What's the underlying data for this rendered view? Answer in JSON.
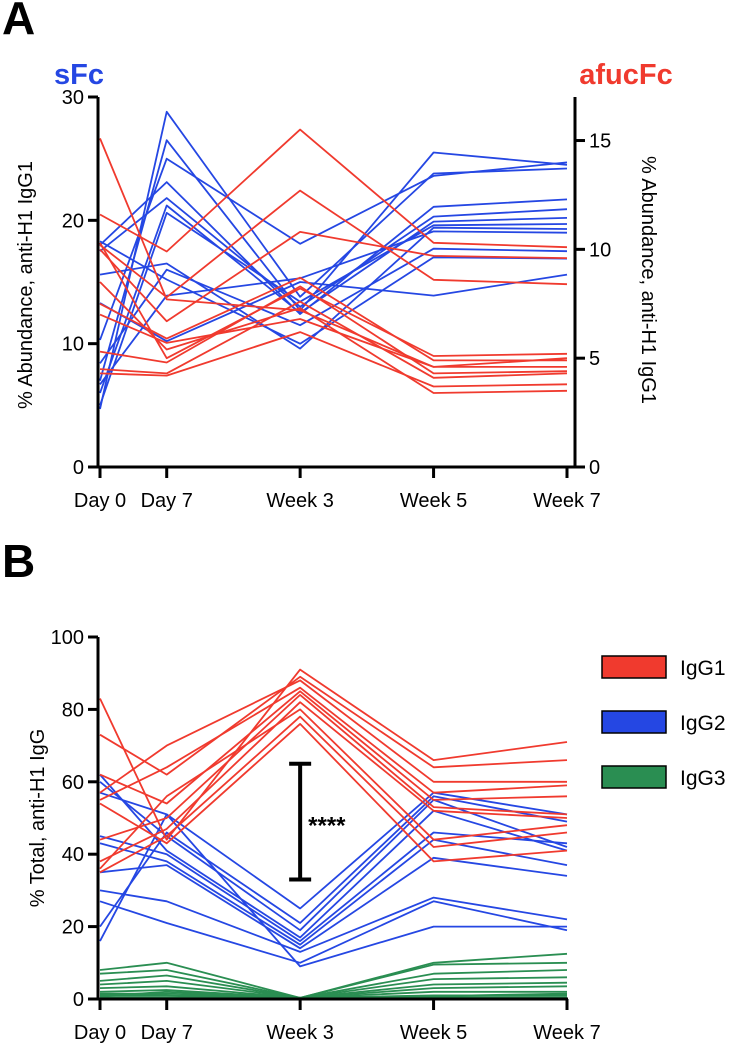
{
  "colors": {
    "sFc": "#2547E3",
    "afucFc": "#F03A2E",
    "IgG1": "#F03A2E",
    "IgG2": "#2547E3",
    "IgG3": "#2A8E52",
    "axis": "#000000"
  },
  "panels": {
    "a": {
      "letter": "A"
    },
    "b": {
      "letter": "B"
    }
  },
  "chart_data": [
    {
      "id": "A",
      "type": "line",
      "categories": [
        "Day 0",
        "Day 7",
        "Week 3",
        "Week 5",
        "Week 7"
      ],
      "x": [
        0,
        1,
        3,
        5,
        7
      ],
      "title": "",
      "left_corner_label": "sFc",
      "right_corner_label": "afucFc",
      "ylabel": "% Abundance, anti-H1 IgG1",
      "ylabel_right": "% Abundance, anti-H1 IgG1",
      "ylim": [
        0,
        30
      ],
      "yticks": [
        0,
        10,
        20,
        30
      ],
      "ylim_right": [
        0,
        17
      ],
      "yticks_right": [
        0,
        5,
        10,
        15
      ],
      "series": [
        {
          "name": "sFc-1",
          "axis": "left",
          "group": "sFc",
          "values": [
            4.7,
            28.8,
            13.8,
            23.8,
            24.2
          ]
        },
        {
          "name": "sFc-2",
          "axis": "left",
          "group": "sFc",
          "values": [
            7.0,
            26.5,
            12.7,
            25.5,
            24.5
          ]
        },
        {
          "name": "sFc-3",
          "axis": "left",
          "group": "sFc",
          "values": [
            10.3,
            25.0,
            18.1,
            23.6,
            24.7
          ]
        },
        {
          "name": "sFc-4",
          "axis": "left",
          "group": "sFc",
          "values": [
            18.0,
            23.1,
            12.4,
            21.1,
            21.7
          ]
        },
        {
          "name": "sFc-5",
          "axis": "left",
          "group": "sFc",
          "values": [
            17.5,
            21.8,
            13.0,
            20.3,
            20.9
          ]
        },
        {
          "name": "sFc-6",
          "axis": "left",
          "group": "sFc",
          "values": [
            6.0,
            21.2,
            12.5,
            19.9,
            20.2
          ]
        },
        {
          "name": "sFc-7",
          "axis": "left",
          "group": "sFc",
          "values": [
            5.0,
            20.6,
            13.4,
            19.6,
            19.7
          ]
        },
        {
          "name": "sFc-8",
          "axis": "left",
          "group": "sFc",
          "values": [
            15.6,
            16.5,
            9.6,
            19.4,
            19.3
          ]
        },
        {
          "name": "sFc-9",
          "axis": "left",
          "group": "sFc",
          "values": [
            8.4,
            16.0,
            11.5,
            17.7,
            17.5
          ]
        },
        {
          "name": "sFc-10",
          "axis": "left",
          "group": "sFc",
          "values": [
            18.3,
            15.2,
            10.0,
            17.0,
            16.9
          ]
        },
        {
          "name": "sFc-11",
          "axis": "left",
          "group": "sFc",
          "values": [
            13.3,
            10.2,
            15.0,
            13.9,
            15.6
          ]
        },
        {
          "name": "sFc-12",
          "axis": "left",
          "group": "sFc",
          "values": [
            6.7,
            13.9,
            15.3,
            19.1,
            19.0
          ]
        },
        {
          "name": "afucFc-1",
          "axis": "right",
          "group": "afucFc",
          "values": [
            15.1,
            7.7,
            7.2,
            4.6,
            5.0
          ]
        },
        {
          "name": "afucFc-2",
          "axis": "right",
          "group": "afucFc",
          "values": [
            11.6,
            9.9,
            15.5,
            10.3,
            10.1
          ]
        },
        {
          "name": "afucFc-3",
          "axis": "right",
          "group": "afucFc",
          "values": [
            10.2,
            7.8,
            12.7,
            8.6,
            8.4
          ]
        },
        {
          "name": "afucFc-4",
          "axis": "right",
          "group": "afucFc",
          "values": [
            10.0,
            6.7,
            10.8,
            9.7,
            9.6
          ]
        },
        {
          "name": "afucFc-5",
          "axis": "right",
          "group": "afucFc",
          "values": [
            10.3,
            5.0,
            8.2,
            5.1,
            5.2
          ]
        },
        {
          "name": "afucFc-6",
          "axis": "right",
          "group": "afucFc",
          "values": [
            7.5,
            5.9,
            8.7,
            4.9,
            4.9
          ]
        },
        {
          "name": "afucFc-7",
          "axis": "right",
          "group": "afucFc",
          "values": [
            5.3,
            4.8,
            8.3,
            4.3,
            4.4
          ]
        },
        {
          "name": "afucFc-8",
          "axis": "right",
          "group": "afucFc",
          "values": [
            4.5,
            4.3,
            7.6,
            4.1,
            4.3
          ]
        },
        {
          "name": "afucFc-9",
          "axis": "right",
          "group": "afucFc",
          "values": [
            4.3,
            4.2,
            6.2,
            3.7,
            3.8
          ]
        },
        {
          "name": "afucFc-10",
          "axis": "right",
          "group": "afucFc",
          "values": [
            8.5,
            5.4,
            7.3,
            3.4,
            3.5
          ]
        },
        {
          "name": "afucFc-11",
          "axis": "right",
          "group": "afucFc",
          "values": [
            7.0,
            5.7,
            6.8,
            4.6,
            4.6
          ]
        }
      ]
    },
    {
      "id": "B",
      "type": "line",
      "categories": [
        "Day 0",
        "Day 7",
        "Week 3",
        "Week 5",
        "Week 7"
      ],
      "x": [
        0,
        1,
        3,
        5,
        7
      ],
      "title": "",
      "ylabel": "% Total, anti-H1 IgG",
      "ylim": [
        0,
        100
      ],
      "yticks": [
        0,
        20,
        40,
        60,
        80,
        100
      ],
      "legend": [
        "IgG1",
        "IgG2",
        "IgG3"
      ],
      "legend_position": "right",
      "significance": {
        "label": "****",
        "x_category": "Week 3",
        "y_low": 33,
        "y_high": 65
      },
      "series": [
        {
          "name": "IgG1-1",
          "group": "IgG1",
          "values": [
            83,
            44,
            91,
            66,
            71
          ]
        },
        {
          "name": "IgG1-2",
          "group": "IgG1",
          "values": [
            73,
            62,
            89,
            64,
            66
          ]
        },
        {
          "name": "IgG1-3",
          "group": "IgG1",
          "values": [
            57,
            70,
            88,
            60,
            60
          ]
        },
        {
          "name": "IgG1-4",
          "group": "IgG1",
          "values": [
            55,
            64,
            86,
            57,
            59
          ]
        },
        {
          "name": "IgG1-5",
          "group": "IgG1",
          "values": [
            62,
            54,
            85,
            55,
            56
          ]
        },
        {
          "name": "IgG1-6",
          "group": "IgG1",
          "values": [
            44,
            50,
            84,
            53,
            51
          ]
        },
        {
          "name": "IgG1-7",
          "group": "IgG1",
          "values": [
            38,
            47,
            82,
            52,
            50
          ]
        },
        {
          "name": "IgG1-8",
          "group": "IgG1",
          "values": [
            36,
            56,
            80,
            44,
            48
          ]
        },
        {
          "name": "IgG1-9",
          "group": "IgG1",
          "values": [
            35,
            45,
            78,
            42,
            46
          ]
        },
        {
          "name": "IgG1-10",
          "group": "IgG1",
          "values": [
            54,
            43,
            76,
            38,
            41
          ]
        },
        {
          "name": "IgG2-1",
          "group": "IgG2",
          "values": [
            16,
            51,
            25,
            57,
            51
          ]
        },
        {
          "name": "IgG2-2",
          "group": "IgG2",
          "values": [
            20,
            46,
            21,
            56,
            49
          ]
        },
        {
          "name": "IgG2-3",
          "group": "IgG2",
          "values": [
            60,
            45,
            19,
            55,
            42
          ]
        },
        {
          "name": "IgG2-4",
          "group": "IgG2",
          "values": [
            62,
            41,
            17,
            52,
            41
          ]
        },
        {
          "name": "IgG2-5",
          "group": "IgG2",
          "values": [
            45,
            40,
            16,
            46,
            43
          ]
        },
        {
          "name": "IgG2-6",
          "group": "IgG2",
          "values": [
            43,
            38,
            15,
            44,
            37
          ]
        },
        {
          "name": "IgG2-7",
          "group": "IgG2",
          "values": [
            35,
            37,
            14,
            39,
            34
          ]
        },
        {
          "name": "IgG2-8",
          "group": "IgG2",
          "values": [
            30,
            27,
            13,
            28,
            22
          ]
        },
        {
          "name": "IgG2-9",
          "group": "IgG2",
          "values": [
            27,
            21,
            10,
            27,
            19
          ]
        },
        {
          "name": "IgG2-10",
          "group": "IgG2",
          "values": [
            57,
            51,
            9,
            20,
            20
          ]
        },
        {
          "name": "IgG3-1",
          "group": "IgG3",
          "values": [
            8,
            10,
            0.3,
            10,
            12.5
          ]
        },
        {
          "name": "IgG3-2",
          "group": "IgG3",
          "values": [
            7,
            8,
            0.3,
            9.5,
            10
          ]
        },
        {
          "name": "IgG3-3",
          "group": "IgG3",
          "values": [
            5,
            6.5,
            0.3,
            7,
            8
          ]
        },
        {
          "name": "IgG3-4",
          "group": "IgG3",
          "values": [
            4,
            5,
            0.3,
            5.5,
            6
          ]
        },
        {
          "name": "IgG3-5",
          "group": "IgG3",
          "values": [
            3,
            3.5,
            0.3,
            4,
            4.5
          ]
        },
        {
          "name": "IgG3-6",
          "group": "IgG3",
          "values": [
            2,
            2.5,
            0.3,
            3,
            3.5
          ]
        },
        {
          "name": "IgG3-7",
          "group": "IgG3",
          "values": [
            1.5,
            1.5,
            0.3,
            2,
            2
          ]
        },
        {
          "name": "IgG3-8",
          "group": "IgG3",
          "values": [
            1,
            1,
            0.3,
            1,
            1
          ]
        },
        {
          "name": "IgG3-9",
          "group": "IgG3",
          "values": [
            0.5,
            0.5,
            0.3,
            0.5,
            0.5
          ]
        },
        {
          "name": "IgG3-10",
          "group": "IgG3",
          "values": [
            0.8,
            2,
            0.3,
            0.8,
            1.5
          ]
        }
      ]
    }
  ]
}
